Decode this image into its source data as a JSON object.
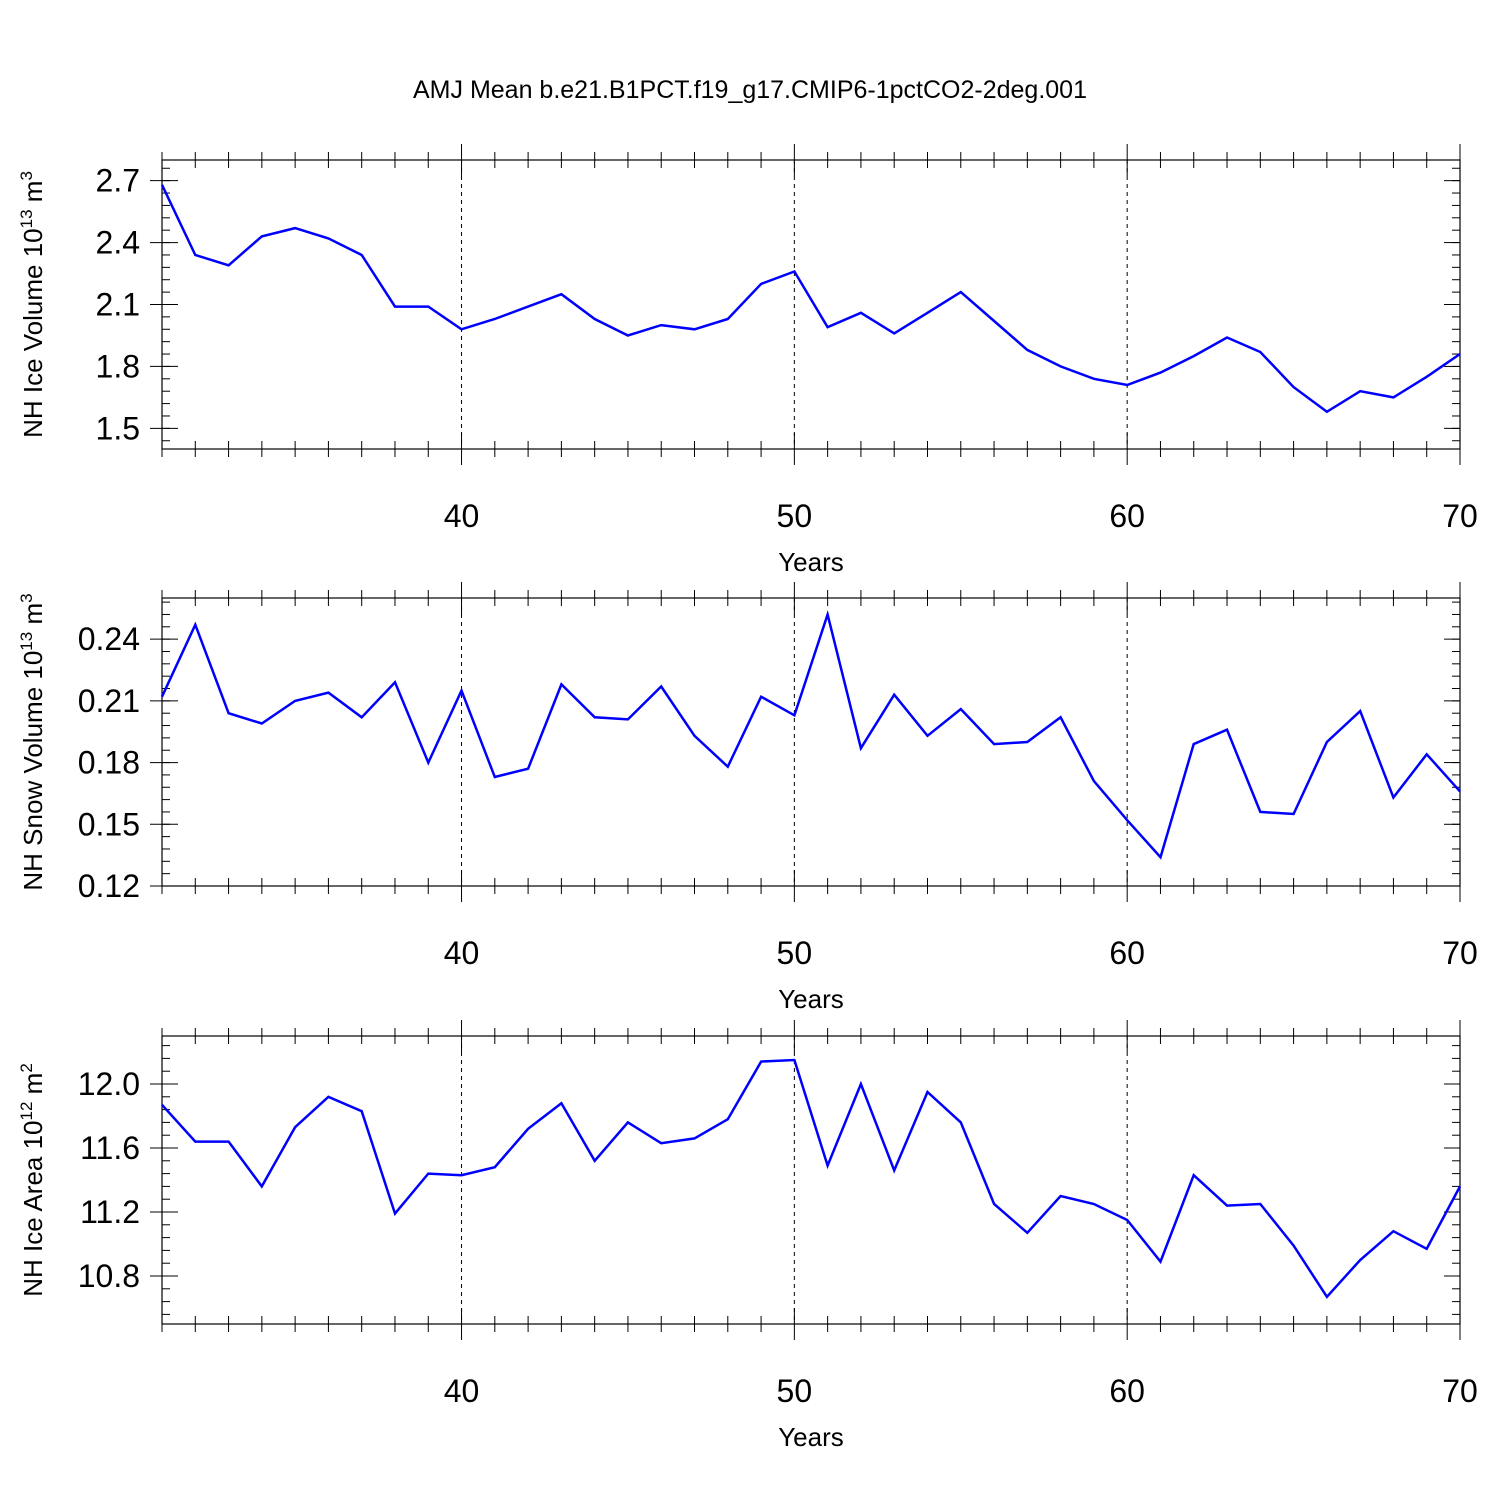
{
  "title": "AMJ Mean b.e21.B1PCT.f19_g17.CMIP6-1pctCO2-2deg.001",
  "line_color": "#0000ff",
  "chart_data": [
    {
      "type": "line",
      "ylabel": {
        "pre": "NH Ice Volume 10",
        "exp": "13",
        "mid": " m",
        "exp2": "3"
      },
      "xlabel": "Years",
      "xlim": [
        31,
        70
      ],
      "ylim": [
        1.4,
        2.8
      ],
      "xticks": [
        40,
        50,
        60,
        70
      ],
      "yticks": [
        1.5,
        1.8,
        2.1,
        2.4,
        2.7
      ],
      "ytick_labels": [
        "1.5",
        "1.8",
        "2.1",
        "2.4",
        "2.7"
      ],
      "grid": "dashed vertical at major x ticks",
      "x": [
        31,
        32,
        33,
        34,
        35,
        36,
        37,
        38,
        39,
        40,
        41,
        42,
        43,
        44,
        45,
        46,
        47,
        48,
        49,
        50,
        51,
        52,
        53,
        54,
        55,
        56,
        57,
        58,
        59,
        60,
        61,
        62,
        63,
        64,
        65,
        66,
        67,
        68,
        69,
        70
      ],
      "y": [
        2.68,
        2.34,
        2.29,
        2.43,
        2.47,
        2.42,
        2.34,
        2.09,
        2.09,
        1.98,
        2.03,
        2.09,
        2.15,
        2.03,
        1.95,
        2.0,
        1.98,
        2.03,
        2.2,
        2.26,
        1.99,
        2.06,
        1.96,
        2.06,
        2.16,
        2.02,
        1.88,
        1.8,
        1.74,
        1.71,
        1.77,
        1.85,
        1.94,
        1.87,
        1.7,
        1.58,
        1.68,
        1.65,
        1.75,
        1.86
      ]
    },
    {
      "type": "line",
      "ylabel": {
        "pre": "NH Snow Volume 10",
        "exp": "13",
        "mid": " m",
        "exp2": "3"
      },
      "xlabel": "Years",
      "xlim": [
        31,
        70
      ],
      "ylim": [
        0.12,
        0.26
      ],
      "xticks": [
        40,
        50,
        60,
        70
      ],
      "yticks": [
        0.12,
        0.15,
        0.18,
        0.21,
        0.24
      ],
      "ytick_labels": [
        "0.12",
        "0.15",
        "0.18",
        "0.21",
        "0.24"
      ],
      "grid": "dashed vertical at major x ticks",
      "x": [
        31,
        32,
        33,
        34,
        35,
        36,
        37,
        38,
        39,
        40,
        41,
        42,
        43,
        44,
        45,
        46,
        47,
        48,
        49,
        50,
        51,
        52,
        53,
        54,
        55,
        56,
        57,
        58,
        59,
        60,
        61,
        62,
        63,
        64,
        65,
        66,
        67,
        68,
        69,
        70
      ],
      "y": [
        0.212,
        0.247,
        0.204,
        0.199,
        0.21,
        0.214,
        0.202,
        0.219,
        0.18,
        0.215,
        0.173,
        0.177,
        0.218,
        0.202,
        0.201,
        0.217,
        0.193,
        0.178,
        0.212,
        0.203,
        0.252,
        0.187,
        0.213,
        0.193,
        0.206,
        0.189,
        0.19,
        0.202,
        0.171,
        0.152,
        0.134,
        0.189,
        0.196,
        0.156,
        0.155,
        0.19,
        0.205,
        0.163,
        0.184,
        0.166
      ]
    },
    {
      "type": "line",
      "ylabel": {
        "pre": "NH Ice Area 10",
        "exp": "12",
        "mid": " m",
        "exp2": "2"
      },
      "xlabel": "Years",
      "xlim": [
        31,
        70
      ],
      "ylim": [
        10.5,
        12.3
      ],
      "xticks": [
        40,
        50,
        60,
        70
      ],
      "yticks": [
        10.8,
        11.2,
        11.6,
        12.0
      ],
      "ytick_labels": [
        "10.8",
        "11.2",
        "11.6",
        "12.0"
      ],
      "grid": "dashed vertical at major x ticks",
      "x": [
        31,
        32,
        33,
        34,
        35,
        36,
        37,
        38,
        39,
        40,
        41,
        42,
        43,
        44,
        45,
        46,
        47,
        48,
        49,
        50,
        51,
        52,
        53,
        54,
        55,
        56,
        57,
        58,
        59,
        60,
        61,
        62,
        63,
        64,
        65,
        66,
        67,
        68,
        69,
        70
      ],
      "y": [
        11.87,
        11.64,
        11.64,
        11.36,
        11.73,
        11.92,
        11.83,
        11.19,
        11.44,
        11.43,
        11.48,
        11.72,
        11.88,
        11.52,
        11.76,
        11.63,
        11.66,
        11.78,
        12.14,
        12.15,
        11.49,
        12.0,
        11.46,
        11.95,
        11.76,
        11.25,
        11.07,
        11.3,
        11.25,
        11.15,
        10.89,
        11.43,
        11.24,
        11.25,
        10.99,
        10.67,
        10.9,
        11.08,
        10.97,
        11.36
      ]
    }
  ]
}
